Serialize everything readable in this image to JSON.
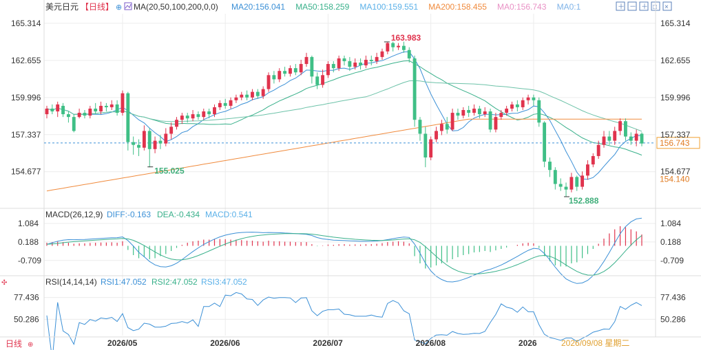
{
  "header": {
    "symbol": "美元日元",
    "period_tag": "【日线】",
    "ma_label": "MA(20,50,100,200,0,0)",
    "ma_values": [
      {
        "text": "MA20:156.041",
        "color": "#3a8fd6"
      },
      {
        "text": "MA50:158.259",
        "color": "#38b08a"
      },
      {
        "text": "MA100:159.551",
        "color": "#5ab0e8"
      },
      {
        "text": "MA200:158.455",
        "color": "#f08a3c"
      },
      {
        "text": "MA0:156.743",
        "color": "#e991c5"
      },
      {
        "text": "MA0:1",
        "color": "#7fb3e8"
      }
    ],
    "toolbar_icons": [
      "move-icon",
      "zoom-out-icon",
      "zoom-in-icon",
      "fullscreen-icon",
      "close-icon"
    ]
  },
  "colors": {
    "up": "#e0334d",
    "down": "#3fbf86",
    "ma20": "#3a8fd6",
    "ma50": "#38b08a",
    "ma100": "#6cc2a8",
    "ma200": "#f08a3c",
    "current": "#f0a030",
    "grid": "#ececec"
  },
  "price_axis": {
    "ticks": [
      "165.314",
      "162.655",
      "159.996",
      "157.337",
      "154.677"
    ],
    "tick_values": [
      165.314,
      162.655,
      159.996,
      157.337,
      154.677
    ],
    "range": [
      152.2,
      166.0
    ],
    "current_label": "156.743",
    "current_value": 156.743,
    "secondary_label": "154.140",
    "secondary_value": 154.14
  },
  "annotations": {
    "high_label": "163.983",
    "high_value": 163.983,
    "low1_label": "155.025",
    "low1_value": 155.025,
    "low2_label": "152.888",
    "low2_value": 152.888
  },
  "macd": {
    "title": "MACD(26,12,9)",
    "diff": "DIFF:-0.163",
    "dea": "DEA:-0.434",
    "macd": "MACD:0.541",
    "ticks": [
      "1.084",
      "0.188",
      "-0.709"
    ],
    "tick_values": [
      1.084,
      0.188,
      -0.709
    ],
    "range": [
      -1.35,
      1.25
    ]
  },
  "rsi": {
    "title": "RSI(14,14,14)",
    "rsi1": "RSI1:47.052",
    "rsi2": "RSI2:47.052",
    "rsi3": "RSI3:47.052",
    "ticks": [
      "77.436",
      "50.286"
    ],
    "tick_values": [
      77.436,
      50.286
    ],
    "range": [
      30,
      90
    ]
  },
  "time_axis": {
    "period_button": "日线",
    "labels": [
      "2026/05",
      "2026/06",
      "2026/07",
      "2026/08",
      "2026"
    ],
    "label_index": [
      14,
      33,
      52,
      71,
      90
    ],
    "cursor_date": "2026/09/08 星期二"
  },
  "chart_data": {
    "type": "candlestick",
    "candles": [
      [
        158.8,
        159.2,
        159.4,
        158.5
      ],
      [
        159.2,
        159.0,
        159.5,
        158.8
      ],
      [
        159.0,
        159.5,
        159.7,
        158.6
      ],
      [
        159.4,
        158.8,
        159.6,
        158.6
      ],
      [
        158.8,
        158.6,
        159.0,
        158.2
      ],
      [
        158.6,
        157.6,
        158.8,
        157.5
      ],
      [
        158.6,
        158.9,
        159.2,
        158.5
      ],
      [
        158.9,
        158.7,
        159.1,
        158.5
      ],
      [
        158.7,
        159.2,
        159.4,
        158.5
      ],
      [
        159.2,
        159.0,
        159.6,
        158.8
      ],
      [
        159.0,
        159.4,
        159.7,
        158.8
      ],
      [
        159.4,
        159.3,
        159.6,
        159.0
      ],
      [
        159.3,
        159.5,
        159.8,
        159.1
      ],
      [
        159.5,
        158.9,
        159.8,
        158.7
      ],
      [
        158.9,
        160.3,
        160.5,
        158.7
      ],
      [
        160.3,
        156.8,
        160.4,
        156.2
      ],
      [
        156.8,
        156.6,
        157.2,
        155.9
      ],
      [
        156.6,
        156.4,
        157.0,
        155.8
      ],
      [
        156.4,
        157.6,
        158.0,
        156.2
      ],
      [
        157.6,
        156.3,
        157.8,
        155.0
      ],
      [
        156.3,
        156.9,
        157.2,
        156.0
      ],
      [
        156.9,
        156.7,
        157.3,
        156.3
      ],
      [
        156.7,
        157.4,
        157.8,
        156.5
      ],
      [
        157.4,
        157.9,
        158.2,
        157.0
      ],
      [
        157.9,
        158.4,
        158.6,
        157.7
      ],
      [
        158.4,
        158.7,
        158.9,
        158.1
      ],
      [
        158.7,
        158.5,
        158.9,
        158.2
      ],
      [
        158.5,
        158.8,
        159.1,
        158.3
      ],
      [
        158.8,
        158.6,
        159.0,
        158.4
      ],
      [
        158.6,
        159.0,
        159.2,
        158.4
      ],
      [
        159.0,
        158.8,
        159.2,
        158.5
      ],
      [
        158.8,
        159.3,
        159.5,
        158.6
      ],
      [
        159.3,
        159.6,
        159.8,
        159.1
      ],
      [
        159.6,
        159.4,
        159.9,
        159.2
      ],
      [
        159.4,
        159.8,
        160.0,
        159.2
      ],
      [
        159.8,
        160.0,
        160.2,
        159.6
      ],
      [
        160.0,
        160.2,
        160.4,
        159.8
      ],
      [
        160.2,
        160.0,
        160.5,
        159.8
      ],
      [
        160.0,
        160.4,
        160.6,
        159.8
      ],
      [
        160.4,
        160.1,
        160.6,
        159.9
      ],
      [
        160.1,
        160.6,
        160.8,
        159.9
      ],
      [
        160.6,
        161.6,
        161.8,
        160.4
      ],
      [
        161.6,
        161.3,
        161.9,
        161.0
      ],
      [
        161.3,
        161.9,
        162.1,
        161.1
      ],
      [
        161.9,
        161.7,
        162.2,
        161.5
      ],
      [
        161.7,
        162.1,
        162.3,
        161.5
      ],
      [
        162.1,
        161.8,
        162.4,
        161.6
      ],
      [
        161.8,
        162.4,
        162.7,
        161.6
      ],
      [
        162.4,
        162.9,
        163.2,
        162.2
      ],
      [
        162.9,
        161.5,
        163.0,
        161.0
      ],
      [
        161.5,
        160.9,
        161.8,
        160.6
      ],
      [
        160.9,
        161.6,
        162.0,
        160.7
      ],
      [
        161.6,
        162.4,
        162.6,
        161.4
      ],
      [
        162.4,
        162.1,
        162.6,
        161.8
      ],
      [
        162.1,
        162.8,
        163.0,
        161.9
      ],
      [
        162.8,
        162.6,
        163.0,
        162.3
      ],
      [
        162.6,
        162.2,
        162.9,
        161.9
      ],
      [
        162.2,
        162.5,
        162.8,
        162.0
      ],
      [
        162.5,
        162.3,
        162.8,
        162.0
      ],
      [
        162.3,
        162.7,
        163.0,
        162.1
      ],
      [
        162.7,
        162.6,
        163.0,
        162.3
      ],
      [
        162.6,
        162.9,
        163.2,
        162.4
      ],
      [
        162.9,
        163.3,
        163.5,
        162.7
      ],
      [
        163.3,
        163.9,
        164.0,
        163.1
      ],
      [
        163.9,
        163.6,
        164.0,
        163.3
      ],
      [
        163.6,
        163.7,
        163.9,
        163.4
      ],
      [
        163.7,
        163.4,
        164.0,
        163.2
      ],
      [
        163.4,
        162.8,
        163.6,
        162.5
      ],
      [
        162.8,
        158.4,
        163.0,
        157.9
      ],
      [
        158.4,
        157.4,
        158.6,
        156.9
      ],
      [
        157.4,
        155.7,
        157.9,
        155.0
      ],
      [
        155.7,
        157.0,
        157.2,
        155.5
      ],
      [
        157.0,
        157.6,
        157.9,
        156.8
      ],
      [
        157.6,
        158.1,
        158.4,
        157.3
      ],
      [
        158.1,
        157.7,
        158.6,
        157.4
      ],
      [
        157.7,
        158.9,
        159.2,
        157.6
      ],
      [
        158.9,
        158.7,
        159.2,
        158.4
      ],
      [
        158.7,
        159.1,
        159.3,
        158.5
      ],
      [
        159.1,
        158.9,
        159.4,
        158.6
      ],
      [
        158.9,
        159.2,
        159.5,
        158.7
      ],
      [
        159.2,
        158.8,
        159.4,
        158.5
      ],
      [
        158.8,
        159.0,
        159.3,
        158.6
      ],
      [
        159.0,
        157.7,
        159.2,
        157.5
      ],
      [
        157.7,
        158.6,
        158.9,
        157.5
      ],
      [
        158.6,
        158.9,
        159.1,
        158.4
      ],
      [
        158.9,
        159.2,
        159.4,
        158.7
      ],
      [
        159.2,
        159.5,
        159.7,
        159.0
      ],
      [
        159.5,
        159.3,
        159.8,
        159.0
      ],
      [
        159.3,
        159.8,
        160.0,
        159.1
      ],
      [
        159.8,
        160.0,
        160.2,
        159.5
      ],
      [
        160.0,
        159.8,
        160.2,
        159.4
      ],
      [
        159.8,
        158.2,
        160.0,
        157.9
      ],
      [
        158.2,
        155.4,
        158.3,
        155.0
      ],
      [
        155.4,
        154.8,
        155.7,
        154.3
      ],
      [
        154.8,
        153.8,
        155.0,
        153.4
      ],
      [
        153.8,
        153.6,
        154.2,
        153.3
      ],
      [
        153.6,
        153.4,
        153.9,
        152.9
      ],
      [
        153.4,
        154.3,
        154.6,
        153.2
      ],
      [
        154.3,
        153.6,
        154.4,
        153.3
      ],
      [
        153.6,
        154.4,
        154.7,
        153.4
      ],
      [
        154.4,
        155.2,
        155.5,
        154.1
      ],
      [
        155.2,
        155.8,
        156.0,
        155.0
      ],
      [
        155.8,
        156.6,
        156.9,
        155.6
      ],
      [
        156.6,
        157.2,
        157.6,
        156.4
      ],
      [
        157.2,
        156.9,
        157.6,
        156.6
      ],
      [
        156.9,
        157.6,
        157.9,
        156.6
      ],
      [
        157.6,
        158.3,
        158.5,
        157.3
      ],
      [
        158.3,
        157.2,
        158.5,
        156.9
      ],
      [
        157.2,
        156.9,
        157.5,
        156.6
      ],
      [
        156.9,
        157.4,
        157.7,
        156.5
      ],
      [
        157.4,
        156.7,
        157.5,
        156.5
      ]
    ],
    "macd_hist": [
      0.15,
      0.18,
      0.2,
      0.18,
      0.15,
      0.1,
      0.12,
      0.12,
      0.14,
      0.15,
      0.16,
      0.16,
      0.17,
      0.15,
      0.22,
      -0.2,
      -0.45,
      -0.6,
      -0.55,
      -0.65,
      -0.6,
      -0.5,
      -0.4,
      -0.25,
      -0.1,
      0.05,
      0.15,
      0.22,
      0.25,
      0.3,
      0.3,
      0.32,
      0.33,
      0.32,
      0.3,
      0.3,
      0.28,
      0.25,
      0.25,
      0.22,
      0.2,
      0.25,
      0.22,
      0.22,
      0.2,
      0.2,
      0.18,
      0.18,
      0.18,
      0.08,
      -0.02,
      0.02,
      0.06,
      0.05,
      0.08,
      0.08,
      0.06,
      0.07,
      0.06,
      0.08,
      0.08,
      0.1,
      0.13,
      0.18,
      0.2,
      0.22,
      0.2,
      0.12,
      -0.5,
      -0.85,
      -1.1,
      -1.05,
      -0.95,
      -0.85,
      -0.8,
      -0.65,
      -0.55,
      -0.45,
      -0.4,
      -0.32,
      -0.3,
      -0.25,
      -0.3,
      -0.22,
      -0.15,
      -0.08,
      0.0,
      0.05,
      0.12,
      0.15,
      0.12,
      -0.1,
      -0.5,
      -0.75,
      -0.95,
      -1.0,
      -1.0,
      -0.85,
      -0.8,
      -0.6,
      -0.4,
      -0.15,
      0.1,
      0.35,
      0.6,
      0.8,
      0.95,
      0.9,
      0.8,
      0.7,
      0.55
    ]
  }
}
